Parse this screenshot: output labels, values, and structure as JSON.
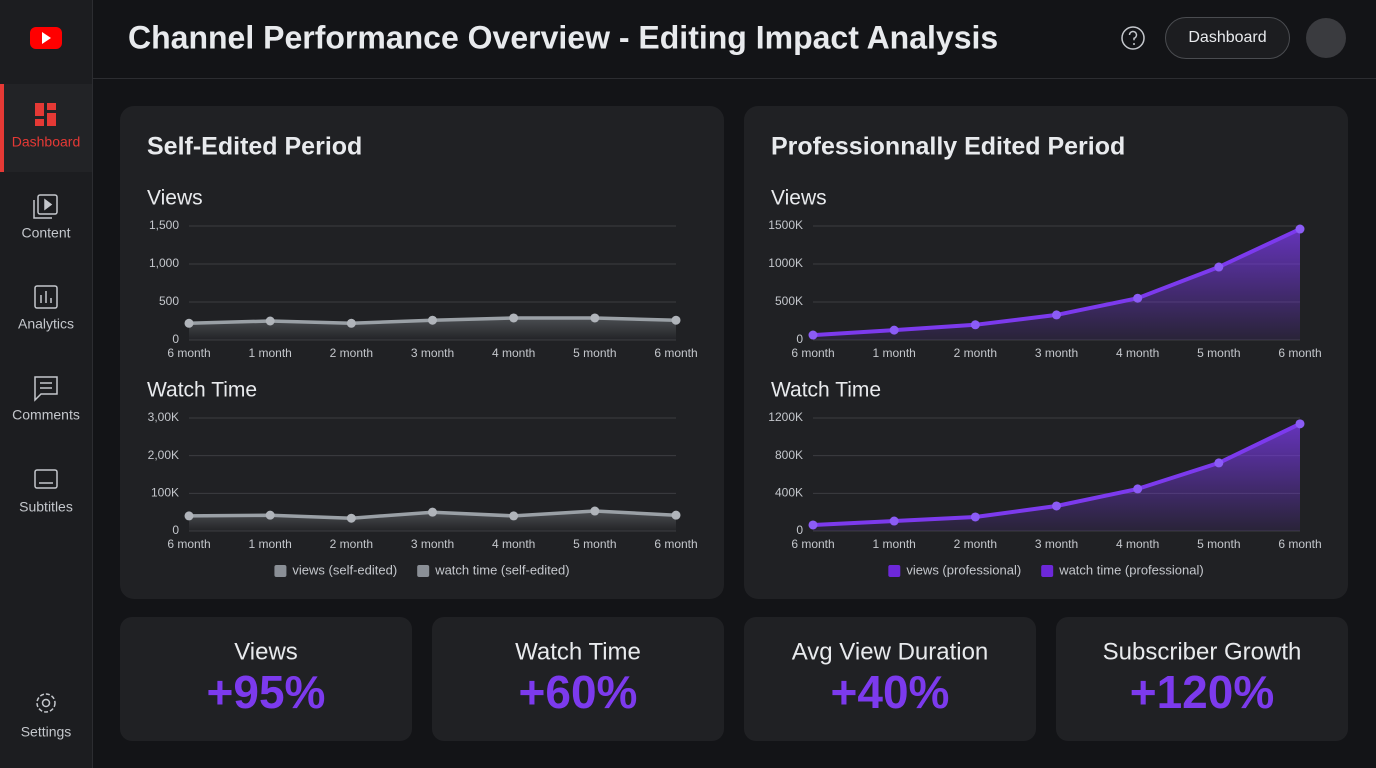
{
  "sidebar": {
    "items": [
      "Dashboard",
      "Content",
      "Analytics",
      "Comments",
      "Subtitles",
      "Settings"
    ]
  },
  "header": {
    "title": "Channel Performance Overview - Editing Impact Analysis",
    "button": "Dashboard"
  },
  "panels": [
    {
      "title": "Self-Edited Period",
      "color": "#9aa0a6",
      "charts": [
        {
          "type": "line",
          "title": "Views",
          "categories": [
            "6 month",
            "1 month",
            "2 month",
            "3 month",
            "4 month",
            "5 month",
            "6 month"
          ],
          "values": [
            220,
            250,
            220,
            260,
            290,
            290,
            260
          ],
          "ylim": [
            0,
            1500
          ],
          "yticks": [
            0,
            500,
            {
              "value": 1000,
              "label": "1,000"
            },
            {
              "value": 1500,
              "label": "1,500"
            }
          ],
          "grid": true
        },
        {
          "type": "line",
          "title": "Watch Time",
          "categories": [
            "6 month",
            "1 month",
            "2 month",
            "3 month",
            "4 month",
            "5 month",
            "6 month"
          ],
          "values": [
            40000,
            42000,
            34000,
            50000,
            40000,
            53000,
            42000
          ],
          "ylim": [
            0,
            300000
          ],
          "yticks": [
            0,
            {
              "value": 100000,
              "label": "100K"
            },
            {
              "value": 200000,
              "label": "2,00K"
            },
            {
              "value": 300000,
              "label": "3,00K"
            }
          ],
          "grid": true
        }
      ],
      "legend": [
        {
          "name": "views (self-edited)",
          "color": "#8a8f96"
        },
        {
          "name": "watch time (self-edited)",
          "color": "#8a8f96"
        }
      ]
    },
    {
      "title": "Professionnally Edited Period",
      "color": "#7c3aed",
      "charts": [
        {
          "type": "line",
          "title": "Views",
          "categories": [
            "6 month",
            "1 month",
            "2 month",
            "3 month",
            "4 month",
            "5 month",
            "6 month"
          ],
          "values": [
            65000,
            130000,
            200000,
            330000,
            550000,
            960000,
            1460000
          ],
          "ylim": [
            0,
            1500000
          ],
          "yticks": [
            0,
            {
              "value": 500000,
              "label": "500K"
            },
            {
              "value": 1000000,
              "label": "1000K"
            },
            {
              "value": 1500000,
              "label": "1500K"
            }
          ],
          "grid": true
        },
        {
          "type": "line",
          "title": "Watch Time",
          "categories": [
            "6 month",
            "1 month",
            "2 month",
            "3 month",
            "4 month",
            "5 month",
            "6 month"
          ],
          "values": [
            64000,
            106000,
            149000,
            266000,
            447000,
            723000,
            1138000
          ],
          "ylim": [
            0,
            1200000
          ],
          "yticks": [
            0,
            {
              "value": 400000,
              "label": "400K"
            },
            {
              "value": 800000,
              "label": "800K"
            },
            {
              "value": 1200000,
              "label": "1200K"
            }
          ],
          "grid": true
        }
      ],
      "legend": [
        {
          "name": "views (professional)",
          "color": "#6d28d9"
        },
        {
          "name": "watch time (professional)",
          "color": "#6d28d9"
        }
      ]
    }
  ],
  "stats": [
    {
      "label": "Views",
      "value": "+95%"
    },
    {
      "label": "Watch Time",
      "value": "+60%"
    },
    {
      "label": "Avg View Duration",
      "value": "+40%"
    },
    {
      "label": "Subscriber Growth",
      "value": "+120%"
    }
  ]
}
